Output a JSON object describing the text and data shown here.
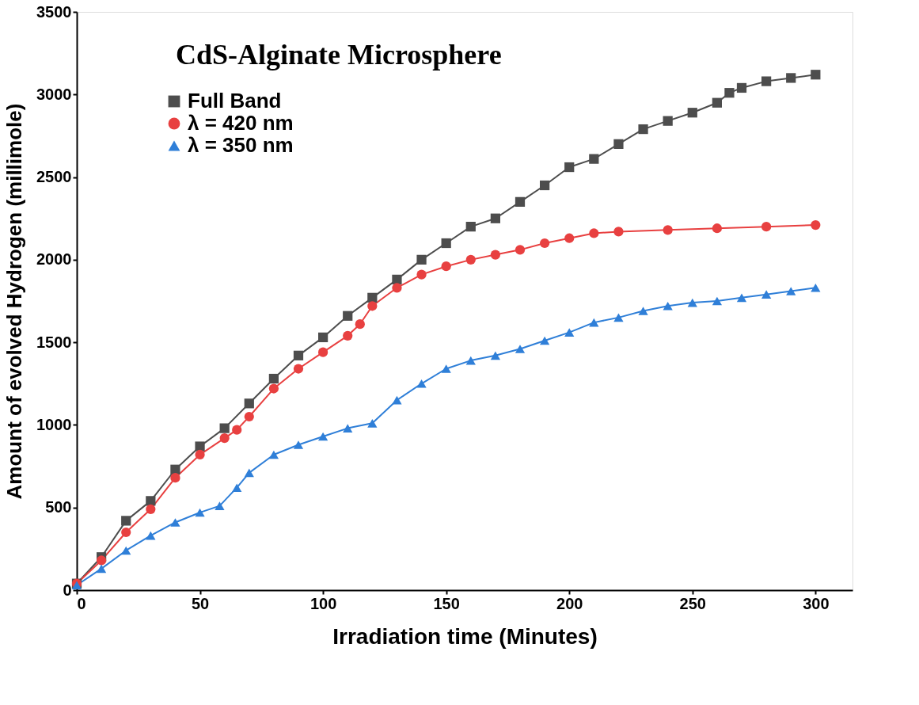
{
  "chart_data": {
    "type": "line",
    "title": "CdS-Alginate Microsphere",
    "xlabel": "Irradiation time (Minutes)",
    "ylabel": "Amount of evolved Hydrogen (millimole)",
    "xlim": [
      0,
      315
    ],
    "xticks": [
      0,
      50,
      100,
      150,
      200,
      250,
      300
    ],
    "ylim": [
      0,
      3500
    ],
    "yticks": [
      0,
      500,
      {
        "value": 1000,
        "label": "1000"
      },
      {
        "value": 1500,
        "label": "1500"
      },
      {
        "value": 2000,
        "label": "2000"
      },
      {
        "value": 2500,
        "label": "2500"
      },
      {
        "value": 3000,
        "label": "3000"
      },
      {
        "value": 3500,
        "label": "3500"
      }
    ],
    "grid": false,
    "legend": "top left",
    "line_style": "solid",
    "series": [
      {
        "name": "Full Band",
        "color": "#4d4d4d",
        "marker": "square",
        "x": [
          0,
          10,
          20,
          30,
          40,
          50,
          60,
          70,
          80,
          90,
          100,
          110,
          120,
          130,
          140,
          150,
          160,
          170,
          180,
          190,
          200,
          210,
          220,
          230,
          240,
          250,
          260,
          265,
          270,
          280,
          290,
          300
        ],
        "values": [
          40,
          200,
          420,
          540,
          730,
          870,
          980,
          1130,
          1280,
          1420,
          1530,
          1660,
          1770,
          1880,
          2000,
          2100,
          2200,
          2250,
          2350,
          2450,
          2560,
          2610,
          2700,
          2790,
          2840,
          2890,
          2950,
          3010,
          3040,
          3080,
          3100,
          3120
        ]
      },
      {
        "name": "λ = 420 nm",
        "color": "#e84040",
        "marker": "circle",
        "x": [
          0,
          10,
          20,
          30,
          40,
          50,
          60,
          65,
          70,
          80,
          90,
          100,
          110,
          115,
          120,
          130,
          140,
          150,
          160,
          170,
          180,
          190,
          200,
          210,
          220,
          240,
          260,
          280,
          300
        ],
        "values": [
          40,
          180,
          350,
          490,
          680,
          820,
          920,
          970,
          1050,
          1220,
          1340,
          1440,
          1540,
          1610,
          1720,
          1830,
          1910,
          1960,
          2000,
          2030,
          2060,
          2100,
          2130,
          2160,
          2170,
          2180,
          2190,
          2200,
          2210
        ]
      },
      {
        "name": "λ = 350 nm",
        "color": "#2f7fd8",
        "marker": "triangle",
        "x": [
          0,
          10,
          20,
          30,
          40,
          50,
          58,
          65,
          70,
          80,
          90,
          100,
          110,
          120,
          130,
          140,
          150,
          160,
          170,
          180,
          190,
          200,
          210,
          220,
          230,
          240,
          250,
          260,
          270,
          280,
          290,
          300
        ],
        "values": [
          30,
          130,
          240,
          330,
          410,
          470,
          510,
          620,
          710,
          820,
          880,
          930,
          980,
          1010,
          1150,
          1250,
          1340,
          1390,
          1420,
          1460,
          1510,
          1560,
          1620,
          1650,
          1690,
          1720,
          1740,
          1750,
          1770,
          1790,
          1810,
          1830
        ]
      }
    ]
  }
}
